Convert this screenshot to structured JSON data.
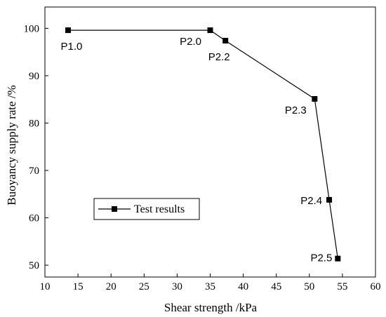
{
  "chart_data": {
    "type": "line",
    "title": "",
    "xlabel": "Shear strength /kPa",
    "ylabel": "Buoyancy supply rate /%",
    "xlim": [
      10,
      60
    ],
    "ylim": [
      47.5,
      104.5
    ],
    "x_ticks": [
      10,
      15,
      20,
      25,
      30,
      35,
      40,
      45,
      50,
      55,
      60
    ],
    "y_ticks": [
      50,
      60,
      70,
      80,
      90,
      100
    ],
    "grid": false,
    "legend_position": "center-left",
    "series": [
      {
        "name": "Test results",
        "color": "#000000",
        "marker": "square",
        "x": [
          13.5,
          35.0,
          37.3,
          50.8,
          53.0,
          54.3
        ],
        "y": [
          99.6,
          99.6,
          97.4,
          85.1,
          63.8,
          51.4
        ],
        "point_labels": [
          "P1.0",
          "P2.0",
          "P2.2",
          "P2.3",
          "P2.4",
          "P2.5"
        ]
      }
    ]
  }
}
